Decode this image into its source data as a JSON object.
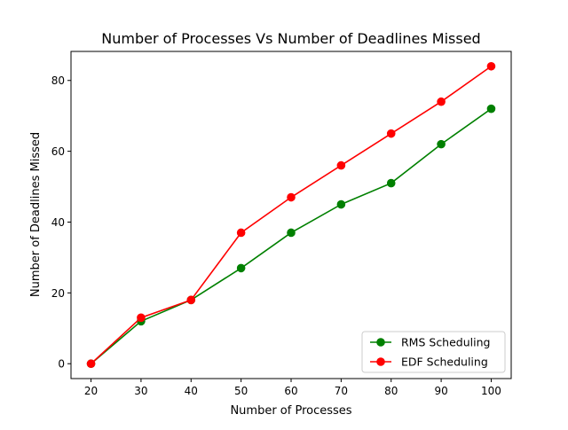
{
  "chart_data": {
    "type": "line",
    "title": "Number of Processes Vs Number of Deadlines Missed",
    "xlabel": "Number of Processes",
    "ylabel": "Number of Deadlines Missed",
    "x": [
      20,
      30,
      40,
      50,
      60,
      70,
      80,
      90,
      100
    ],
    "series": [
      {
        "name": "RMS Scheduling",
        "color": "#008000",
        "values": [
          0,
          12,
          18,
          27,
          37,
          45,
          51,
          62,
          72
        ]
      },
      {
        "name": "EDF Scheduling",
        "color": "#ff0000",
        "values": [
          0,
          13,
          18,
          37,
          47,
          56,
          65,
          74,
          84
        ]
      }
    ],
    "xlim": [
      16,
      104
    ],
    "ylim": [
      -4.2,
      88.2
    ],
    "xticks": [
      "20",
      "30",
      "40",
      "50",
      "60",
      "70",
      "80",
      "90",
      "100"
    ],
    "yticks": [
      "0",
      "20",
      "40",
      "60",
      "80"
    ],
    "grid": false,
    "legend_position": "lower-right",
    "marker": "circle"
  }
}
